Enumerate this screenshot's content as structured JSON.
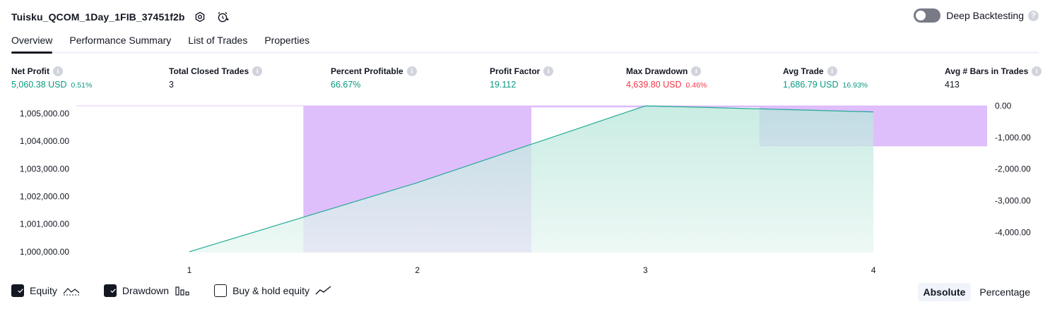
{
  "header": {
    "strategy_title": "Tuisku_QCOM_1Day_1FIB_37451f2b",
    "settings_icon": "gear-icon",
    "alert_icon": "alarm-clock-plus-icon",
    "deep_backtesting_label": "Deep Backtesting",
    "deep_backtesting_enabled": false
  },
  "tabs": [
    {
      "label": "Overview",
      "active": true
    },
    {
      "label": "Performance Summary",
      "active": false
    },
    {
      "label": "List of Trades",
      "active": false
    },
    {
      "label": "Properties",
      "active": false
    }
  ],
  "stats": [
    {
      "label": "Net Profit",
      "value": "5,060.38 USD",
      "pct": "0.51%",
      "color": "green"
    },
    {
      "label": "Total Closed Trades",
      "value": "3",
      "pct": "",
      "color": "dark"
    },
    {
      "label": "Percent Profitable",
      "value": "66.67%",
      "pct": "",
      "color": "green"
    },
    {
      "label": "Profit Factor",
      "value": "19.112",
      "pct": "",
      "color": "green"
    },
    {
      "label": "Max Drawdown",
      "value": "4,639.80 USD",
      "pct": "0.46%",
      "color": "red"
    },
    {
      "label": "Avg Trade",
      "value": "1,686.79 USD",
      "pct": "16.93%",
      "color": "green"
    },
    {
      "label": "Avg # Bars in Trades",
      "value": "413",
      "pct": "",
      "color": "dark"
    }
  ],
  "chart_data": {
    "type": "line",
    "x": [
      1,
      2,
      3,
      4
    ],
    "series": [
      {
        "name": "Equity",
        "axis": "left",
        "values": [
          1000000,
          1002500,
          1005280,
          1005060
        ]
      },
      {
        "name": "Drawdown",
        "axis": "right",
        "type": "bar",
        "values": [
          0,
          -4639.8,
          -50,
          -1280
        ]
      }
    ],
    "left_axis": {
      "ticks": [
        "1,000,000.00",
        "1,001,000.00",
        "1,002,000.00",
        "1,003,000.00",
        "1,004,000.00",
        "1,005,000.00"
      ],
      "ylim": [
        999970,
        1005280
      ]
    },
    "right_axis": {
      "ticks": [
        "0.00",
        "-1,000.00",
        "-2,000.00",
        "-3,000.00",
        "-4,000.00"
      ],
      "ylim": [
        -4639.8,
        0
      ]
    },
    "x_ticks": [
      "1",
      "2",
      "3",
      "4"
    ],
    "colors": {
      "equity_line": "#22ab94",
      "equity_fill": "#cdeee6",
      "drawdown_fill": "#d9b3fc"
    }
  },
  "legend": [
    {
      "label": "Equity",
      "checked": true,
      "icon": "equity-line-icon"
    },
    {
      "label": "Drawdown",
      "checked": true,
      "icon": "drawdown-bars-icon"
    },
    {
      "label": "Buy & hold equity",
      "checked": false,
      "icon": "buy-hold-line-icon"
    }
  ],
  "display_mode": {
    "options": [
      "Absolute",
      "Percentage"
    ],
    "selected": "Absolute"
  }
}
